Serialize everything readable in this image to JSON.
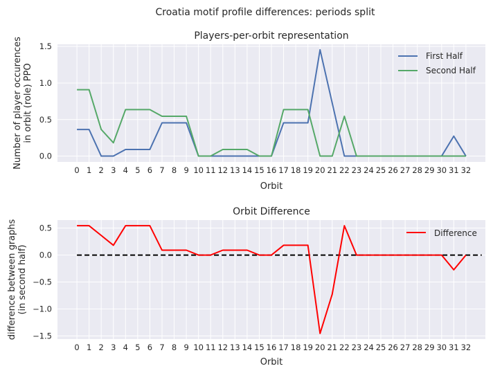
{
  "figure": {
    "suptitle": "Croatia motif profile differences: periods split"
  },
  "chart_data": [
    {
      "type": "line",
      "title": "Players-per-orbit representation",
      "xlabel": "Orbit",
      "ylabel_lines": [
        "Number of player occurences",
        "in orbit (role) PPO"
      ],
      "xlim": [
        -1.6,
        33.6
      ],
      "ylim": [
        -0.08,
        1.53
      ],
      "categories": [
        "0",
        "1",
        "2",
        "3",
        "4",
        "5",
        "6",
        "7",
        "8",
        "9",
        "10",
        "11",
        "12",
        "13",
        "14",
        "15",
        "16",
        "17",
        "18",
        "19",
        "20",
        "21",
        "22",
        "23",
        "24",
        "25",
        "26",
        "27",
        "28",
        "29",
        "30",
        "31",
        "32"
      ],
      "yticks": [
        0.0,
        0.5,
        1.0,
        1.5
      ],
      "ytick_labels": [
        "0.0",
        "0.5",
        "1.0",
        "1.5"
      ],
      "legend_position": "top-right",
      "series": [
        {
          "name": "First Half",
          "color": "#4C72B0",
          "values": [
            0.364,
            0.364,
            0.0,
            0.0,
            0.091,
            0.091,
            0.091,
            0.455,
            0.455,
            0.455,
            0.0,
            0.0,
            0.0,
            0.0,
            0.0,
            0.0,
            0.0,
            0.455,
            0.455,
            0.455,
            1.455,
            0.727,
            0.0,
            0.0,
            0.0,
            0.0,
            0.0,
            0.0,
            0.0,
            0.0,
            0.0,
            0.273,
            0.0
          ]
        },
        {
          "name": "Second Half",
          "color": "#55A868",
          "values": [
            0.909,
            0.909,
            0.364,
            0.182,
            0.636,
            0.636,
            0.636,
            0.545,
            0.545,
            0.545,
            0.0,
            0.0,
            0.091,
            0.091,
            0.091,
            0.0,
            0.0,
            0.636,
            0.636,
            0.636,
            0.0,
            0.0,
            0.545,
            0.0,
            0.0,
            0.0,
            0.0,
            0.0,
            0.0,
            0.0,
            0.0,
            0.0,
            0.0
          ]
        }
      ]
    },
    {
      "type": "line",
      "title": "Orbit Difference",
      "xlabel": "Orbit",
      "ylabel_lines": [
        "difference between graphs",
        "(in second half)"
      ],
      "xlim": [
        -1.6,
        33.6
      ],
      "ylim": [
        -1.56,
        0.65
      ],
      "categories": [
        "0",
        "1",
        "2",
        "3",
        "4",
        "5",
        "6",
        "7",
        "8",
        "9",
        "10",
        "11",
        "12",
        "13",
        "14",
        "15",
        "16",
        "17",
        "18",
        "19",
        "20",
        "21",
        "22",
        "23",
        "24",
        "25",
        "26",
        "27",
        "28",
        "29",
        "30",
        "31",
        "32"
      ],
      "yticks": [
        0.5,
        0.0,
        -0.5,
        -1.0,
        -1.5
      ],
      "ytick_labels": [
        "0.5",
        "0.0",
        "−0.5",
        "−1.0",
        "−1.5"
      ],
      "legend_position": "top-right",
      "baseline": {
        "y": 0.0,
        "x_from": 0,
        "x_to": 33.3,
        "color": "#000000",
        "style": "dashed"
      },
      "series": [
        {
          "name": "Difference",
          "color": "#FF0000",
          "values": [
            0.545,
            0.545,
            0.364,
            0.182,
            0.545,
            0.545,
            0.545,
            0.091,
            0.091,
            0.091,
            0.0,
            0.0,
            0.091,
            0.091,
            0.091,
            0.0,
            0.0,
            0.182,
            0.182,
            0.182,
            -1.455,
            -0.727,
            0.545,
            0.0,
            0.0,
            0.0,
            0.0,
            0.0,
            0.0,
            0.0,
            0.0,
            -0.273,
            0.0
          ]
        }
      ]
    }
  ]
}
